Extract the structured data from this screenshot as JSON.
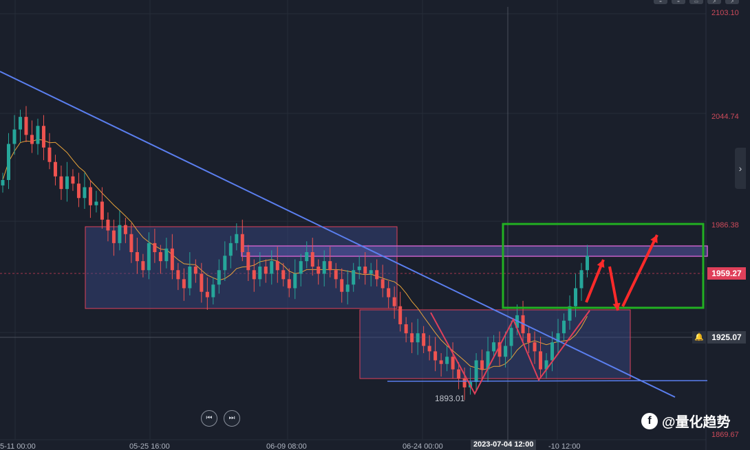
{
  "chart_data": {
    "type": "candlestick",
    "symbol_hint": "",
    "y_axis": {
      "ticks": [
        "2103.10",
        "2044.74",
        "1986.38",
        "1959.27",
        "1925.07",
        "1869.67"
      ],
      "ylim": [
        1866.0,
        2106.0
      ],
      "side": "right"
    },
    "x_axis": {
      "ticks": [
        "5-11 00:00",
        "05-25 16:00",
        "06-09 08:00",
        "06-24 00:00",
        "-10 12:00"
      ],
      "crosshair_label": "2023-07-04 12:00"
    },
    "current_price": "1959.27",
    "crosshair_price": "1925.07",
    "low_annotation": "1893.01",
    "ma_line_color": "#e8a33a",
    "colors": {
      "up": "#26a69a",
      "down": "#ef5350",
      "background": "#1a1f2b",
      "trendline": "#5b7ff0",
      "range_box_fill": "#3a4a8a",
      "range_box_border": "#e0405a",
      "target_box": "#22b022",
      "arrow": "#ff2a2a",
      "current_price_tag": "#e0405a",
      "crosshair_tag": "#363c48"
    },
    "ohlc_close_path": [
      2010,
      2030,
      2038,
      2045,
      2035,
      2030,
      2040,
      2028,
      2020,
      2012,
      2005,
      2012,
      2008,
      2000,
      2006,
      1996,
      1998,
      1988,
      1982,
      1975,
      1985,
      1980,
      1970,
      1965,
      1960,
      1975,
      1970,
      1965,
      1972,
      1960,
      1955,
      1950,
      1962,
      1958,
      1948,
      1945,
      1952,
      1960,
      1968,
      1975,
      1980,
      1970,
      1960,
      1955,
      1962,
      1958,
      1965,
      1960,
      1955,
      1950,
      1958,
      1965,
      1970,
      1962,
      1958,
      1965,
      1960,
      1955,
      1948,
      1952,
      1960,
      1962,
      1958,
      1960,
      1955,
      1950,
      1945,
      1940,
      1930,
      1925,
      1920,
      1925,
      1918,
      1915,
      1910,
      1908,
      1912,
      1905,
      1900,
      1895,
      1898,
      1910,
      1905,
      1915,
      1920,
      1912,
      1918,
      1928,
      1935,
      1925,
      1920,
      1915,
      1905,
      1910,
      1920,
      1925,
      1932,
      1940,
      1950,
      1960,
      1968
    ]
  },
  "ui": {
    "nav_prev_label": "⏮",
    "nav_next_label": "⏭",
    "expand_label": "›",
    "watermark_logo": "f",
    "watermark_text": "@量化趋势",
    "bell_label": "🔔",
    "tool_labels": [
      "=",
      "=",
      "▭",
      "↗",
      "↗"
    ]
  }
}
